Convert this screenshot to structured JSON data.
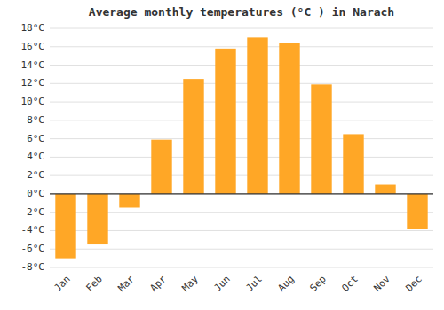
{
  "chart_data": {
    "type": "bar",
    "title": "Average monthly temperatures (°C ) in Narach",
    "categories": [
      "Jan",
      "Feb",
      "Mar",
      "Apr",
      "May",
      "Jun",
      "Jul",
      "Aug",
      "Sep",
      "Oct",
      "Nov",
      "Dec"
    ],
    "values": [
      -7.0,
      -5.5,
      -1.5,
      5.9,
      12.5,
      15.8,
      17.0,
      16.4,
      11.9,
      6.5,
      1.0,
      -3.8
    ],
    "color": "#FFA726",
    "ylim": [
      -8,
      18
    ],
    "yticks": [
      {
        "value": -8,
        "label": "-8°C"
      },
      {
        "value": -6,
        "label": "-6°C"
      },
      {
        "value": -4,
        "label": "-4°C"
      },
      {
        "value": -2,
        "label": "-2°C"
      },
      {
        "value": 0,
        "label": "0°C"
      },
      {
        "value": 2,
        "label": "2°C"
      },
      {
        "value": 4,
        "label": "4°C"
      },
      {
        "value": 6,
        "label": "6°C"
      },
      {
        "value": 8,
        "label": "8°C"
      },
      {
        "value": 10,
        "label": "10°C"
      },
      {
        "value": 12,
        "label": "12°C"
      },
      {
        "value": 14,
        "label": "14°C"
      },
      {
        "value": 16,
        "label": "16°C"
      },
      {
        "value": 18,
        "label": "18°C"
      }
    ],
    "grid": true
  }
}
